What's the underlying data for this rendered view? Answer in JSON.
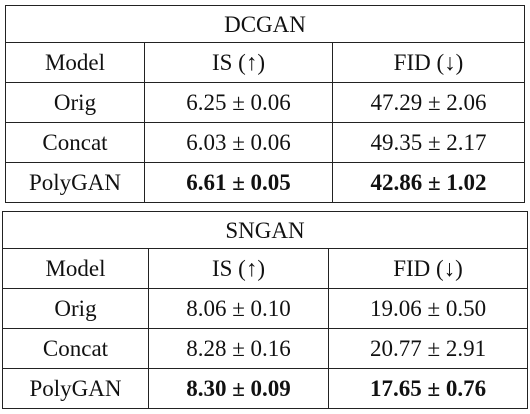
{
  "tables": [
    {
      "title": "DCGAN",
      "headers": [
        "Model",
        "IS (↑)",
        "FID (↓)"
      ],
      "rows": [
        {
          "model": "Orig",
          "is": "6.25 ± 0.06",
          "fid": "47.29 ± 2.06",
          "bold": false
        },
        {
          "model": "Concat",
          "is": "6.03 ± 0.06",
          "fid": "49.35 ± 2.17",
          "bold": false
        },
        {
          "model": "PolyGAN",
          "is": "6.61 ± 0.05",
          "fid": "42.86 ± 1.02",
          "bold": true
        }
      ]
    },
    {
      "title": "SNGAN",
      "headers": [
        "Model",
        "IS (↑)",
        "FID (↓)"
      ],
      "rows": [
        {
          "model": "Orig",
          "is": "8.06 ± 0.10",
          "fid": "19.06 ± 0.50",
          "bold": false
        },
        {
          "model": "Concat",
          "is": "8.28 ± 0.16",
          "fid": "20.77 ± 2.91",
          "bold": false
        },
        {
          "model": "PolyGAN",
          "is": "8.30 ± 0.09",
          "fid": "17.65 ± 0.76",
          "bold": true
        }
      ]
    }
  ]
}
